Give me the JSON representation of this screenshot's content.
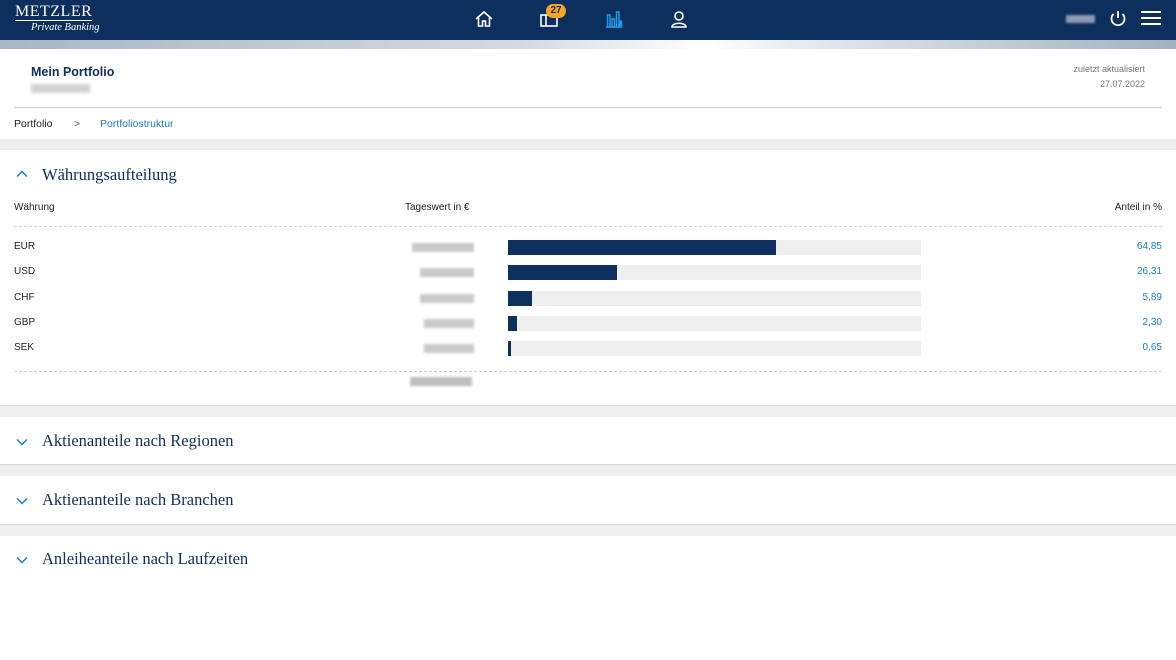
{
  "header": {
    "brand": "METZLER",
    "brand_sub": "Private Banking",
    "notification_count": "27",
    "nav_icons": [
      "home-icon",
      "mailbox-icon",
      "bar-chart-icon",
      "user-icon"
    ],
    "active_nav": "bar-chart-icon",
    "accent_color": "#0d2f5e",
    "active_color": "#1a9be6",
    "badge_color": "#f5a623"
  },
  "portfolio": {
    "title": "Mein Portfolio",
    "updated_label": "zuletzt aktualisiert",
    "updated_date": "27.07.2022"
  },
  "breadcrumb": {
    "root": "Portfolio",
    "separator": ">",
    "current": "Portfoliostruktur"
  },
  "currency_section": {
    "title": "Währungsaufteilung",
    "col_currency": "Währung",
    "col_value": "Tageswert in €",
    "col_share": "Anteil in %",
    "rows": [
      {
        "currency": "EUR",
        "share": "64,85",
        "fraction": 0.6485
      },
      {
        "currency": "USD",
        "share": "26,31",
        "fraction": 0.2631
      },
      {
        "currency": "CHF",
        "share": "5,89",
        "fraction": 0.0589
      },
      {
        "currency": "GBP",
        "share": "2,30",
        "fraction": 0.023
      },
      {
        "currency": "SEK",
        "share": "0,65",
        "fraction": 0.0065
      }
    ]
  },
  "collapsed_sections": [
    {
      "title": "Aktienanteile nach Regionen"
    },
    {
      "title": "Aktienanteile nach Branchen"
    },
    {
      "title": "Anleiheanteile nach Laufzeiten"
    }
  ]
}
